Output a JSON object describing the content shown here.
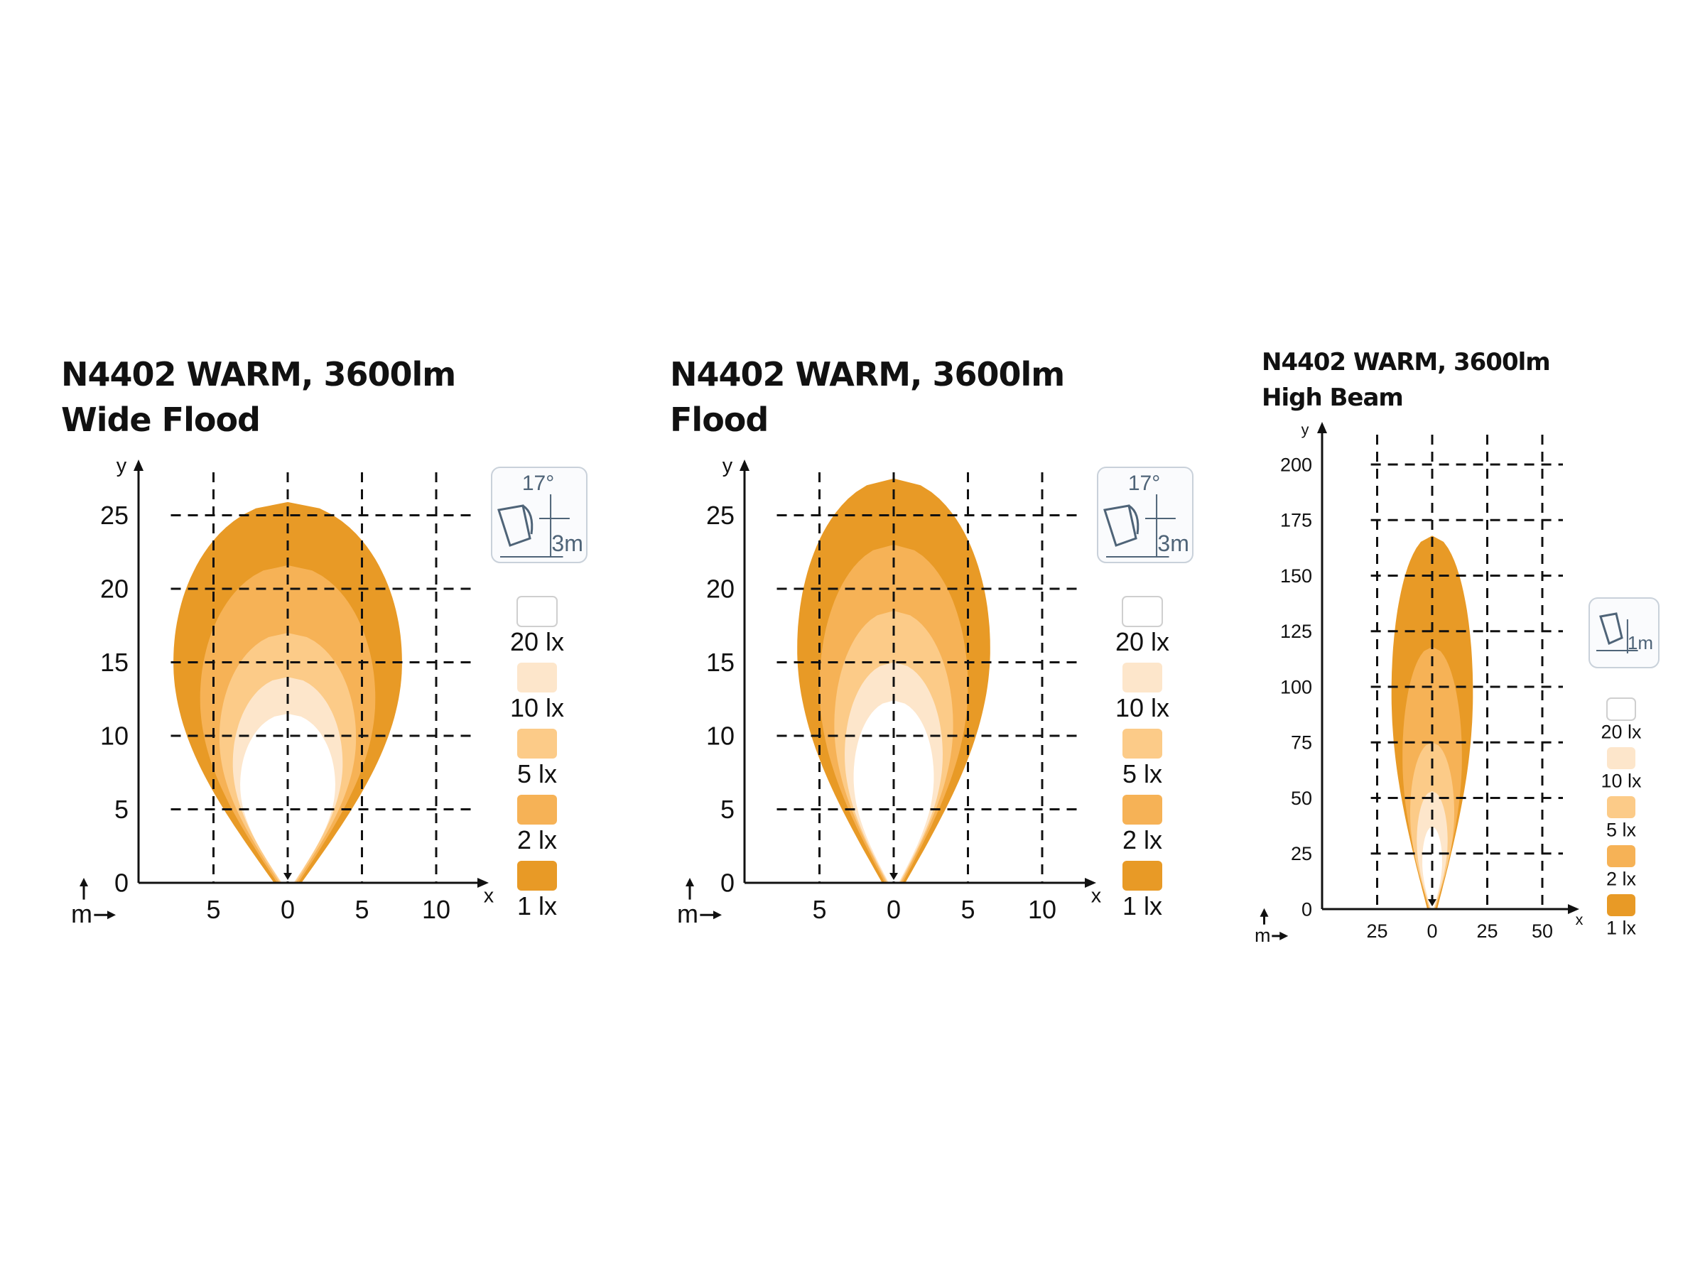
{
  "chart_data": [
    {
      "type": "isolux",
      "title": "N4402 WARM, 3600lm",
      "subtitle": "Wide Flood",
      "xlabel": "x",
      "ylabel": "y",
      "unit_label": "m",
      "xticks": [
        "5",
        "0",
        "5",
        "10"
      ],
      "yticks": [
        "0",
        "5",
        "10",
        "15",
        "20",
        "25"
      ],
      "xlim": [
        -10,
        12
      ],
      "ylim": [
        0,
        28
      ],
      "grid": true,
      "mount_icon": {
        "angle": "17°",
        "height": "3m"
      },
      "contours": [
        {
          "level": "1 lx",
          "color": "#e89a26",
          "reach_m": 25.9,
          "half_width_m": 7.7
        },
        {
          "level": "2 lx",
          "color": "#f6b256",
          "reach_m": 21.6,
          "half_width_m": 5.9
        },
        {
          "level": "5 lx",
          "color": "#fccb88",
          "reach_m": 17.0,
          "half_width_m": 4.6
        },
        {
          "level": "10 lx",
          "color": "#fde6cb",
          "reach_m": 14.0,
          "half_width_m": 3.7
        },
        {
          "level": "20 lx",
          "color": "#ffffff",
          "reach_m": 11.5,
          "half_width_m": 3.2
        }
      ],
      "legend": [
        "20 lx",
        "10 lx",
        "5 lx",
        "2 lx",
        "1 lx"
      ]
    },
    {
      "type": "isolux",
      "title": "N4402 WARM, 3600lm",
      "subtitle": "Flood",
      "xlabel": "x",
      "ylabel": "y",
      "unit_label": "m",
      "xticks": [
        "5",
        "0",
        "5",
        "10"
      ],
      "yticks": [
        "0",
        "5",
        "10",
        "15",
        "20",
        "25"
      ],
      "xlim": [
        -10,
        12
      ],
      "ylim": [
        0,
        28
      ],
      "grid": true,
      "mount_icon": {
        "angle": "17°",
        "height": "3m"
      },
      "contours": [
        {
          "level": "1 lx",
          "color": "#e89a26",
          "reach_m": 27.5,
          "half_width_m": 6.5
        },
        {
          "level": "2 lx",
          "color": "#f6b256",
          "reach_m": 23.0,
          "half_width_m": 5.0
        },
        {
          "level": "5 lx",
          "color": "#fccb88",
          "reach_m": 18.5,
          "half_width_m": 4.0
        },
        {
          "level": "10 lx",
          "color": "#fde6cb",
          "reach_m": 15.0,
          "half_width_m": 3.3
        },
        {
          "level": "20 lx",
          "color": "#ffffff",
          "reach_m": 12.4,
          "half_width_m": 2.7
        }
      ],
      "legend": [
        "20 lx",
        "10 lx",
        "5 lx",
        "2 lx",
        "1 lx"
      ]
    },
    {
      "type": "isolux",
      "title": "N4402 WARM, 3600lm",
      "subtitle": "High Beam",
      "xlabel": "x",
      "ylabel": "y",
      "unit_label": "m",
      "xticks": [
        "25",
        "0",
        "25",
        "50"
      ],
      "yticks": [
        "0",
        "25",
        "50",
        "75",
        "100",
        "125",
        "150",
        "175",
        "200"
      ],
      "xlim": [
        -50,
        65
      ],
      "ylim": [
        0,
        215
      ],
      "grid": true,
      "mount_icon": {
        "height": "1m"
      },
      "contours": [
        {
          "level": "1 lx",
          "color": "#e89a26",
          "reach_m": 168,
          "half_width_m": 18.5
        },
        {
          "level": "2 lx",
          "color": "#f6b256",
          "reach_m": 118,
          "half_width_m": 13.5
        },
        {
          "level": "5 lx",
          "color": "#fccb88",
          "reach_m": 75,
          "half_width_m": 10.0
        },
        {
          "level": "10 lx",
          "color": "#fde6cb",
          "reach_m": 53,
          "half_width_m": 7.0
        },
        {
          "level": "20 lx",
          "color": "#ffffff",
          "reach_m": 37,
          "half_width_m": 4.5
        }
      ],
      "legend": [
        "20 lx",
        "10 lx",
        "5 lx",
        "2 lx",
        "1 lx"
      ]
    }
  ]
}
